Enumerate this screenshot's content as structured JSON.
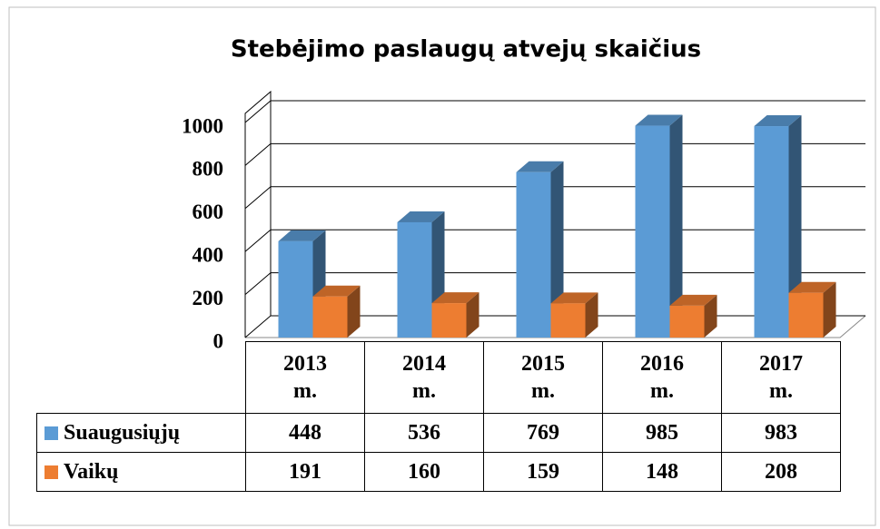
{
  "chart_data": {
    "type": "bar3d",
    "title": "Stebėjimo paslaugų atvejų skaičius",
    "categories": [
      "2013 m.",
      "2014 m.",
      "2015 m.",
      "2016 m.",
      "2017 m."
    ],
    "series": [
      {
        "name": "Suaugusiųjų",
        "color": "#5b9bd5",
        "values": [
          448,
          536,
          769,
          985,
          983
        ]
      },
      {
        "name": "Vaikų",
        "color": "#ed7d31",
        "values": [
          191,
          160,
          159,
          148,
          208
        ]
      }
    ],
    "ylim": [
      0,
      1000
    ],
    "yticks": [
      0,
      200,
      400,
      600,
      800,
      1000
    ],
    "grid": true,
    "data_table": true
  }
}
